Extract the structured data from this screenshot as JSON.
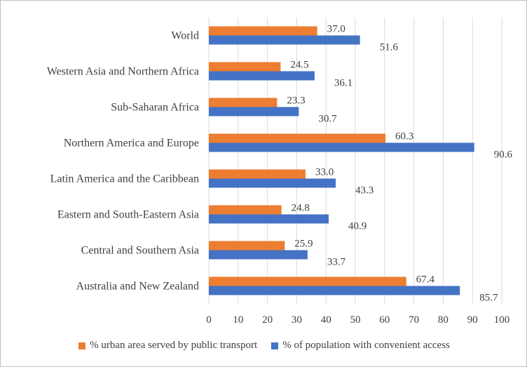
{
  "chart_data": {
    "type": "bar",
    "orientation": "horizontal",
    "categories": [
      "World",
      "Western Asia  and Northern Africa",
      "Sub-Saharan Africa",
      "Northern America and Europe",
      "Latin America and the Caribbean",
      "Eastern and South-Eastern Asia",
      "Central and Southern Asia",
      "Australia and New Zealand"
    ],
    "series": [
      {
        "name": "% urban area served by public transport",
        "color": "#ED7D31",
        "values": [
          37.0,
          24.5,
          23.3,
          60.3,
          33.0,
          24.8,
          25.9,
          67.4
        ],
        "labels": [
          "37.0",
          "24.5",
          "23.3",
          "60.3",
          "33.0",
          "24.8",
          "25.9",
          "67.4"
        ]
      },
      {
        "name": "% of population with convenient access",
        "color": "#4472C4",
        "values": [
          51.6,
          36.1,
          30.7,
          90.6,
          43.3,
          40.9,
          33.7,
          85.7
        ],
        "labels": [
          "51.6",
          "36.1",
          "30.7",
          "90.6",
          "43.3",
          "40.9",
          "33.7",
          "85.7"
        ]
      }
    ],
    "xlim": [
      0,
      100
    ],
    "xticks": [
      "0",
      "10",
      "20",
      "30",
      "40",
      "50",
      "60",
      "70",
      "80",
      "90",
      "100"
    ],
    "title": "",
    "xlabel": "",
    "ylabel": "",
    "grid": true,
    "legend_position": "bottom",
    "gridline_color": "#d9d9d9"
  }
}
